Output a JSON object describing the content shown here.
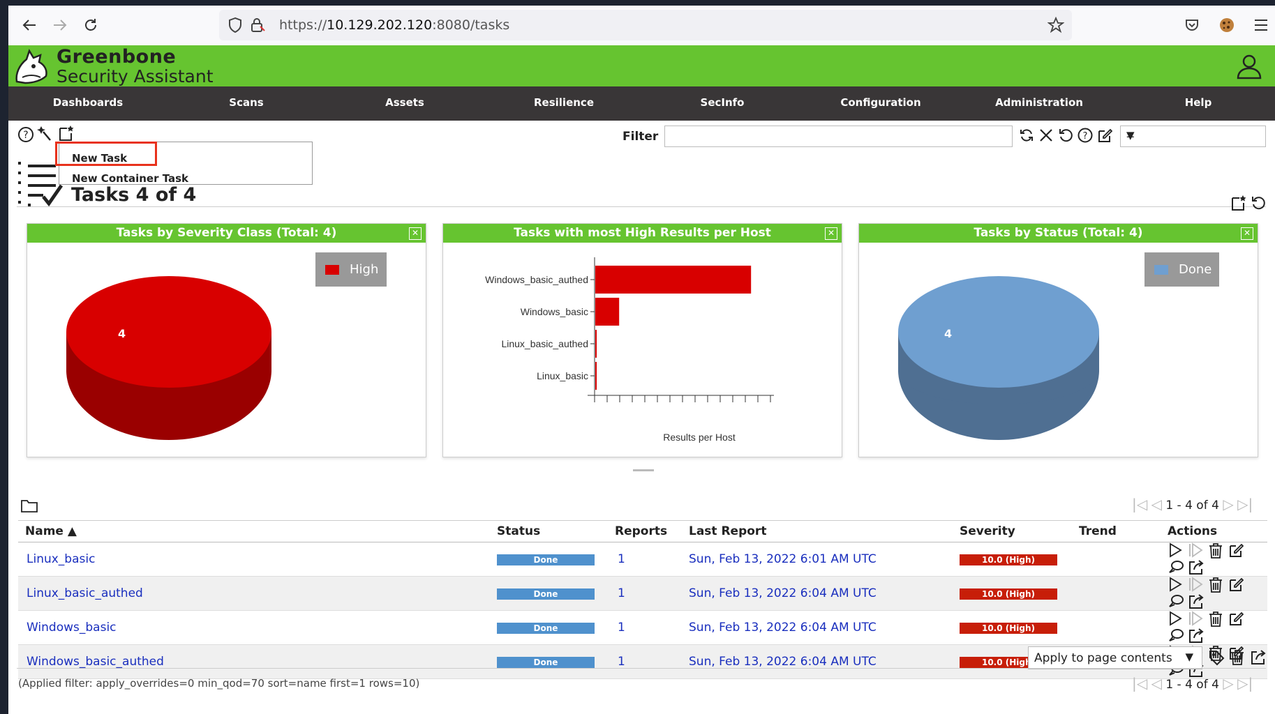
{
  "browser": {
    "url_prefix": "https://",
    "url_host": "10.129.202.120",
    "url_path": ":8080/tasks"
  },
  "app": {
    "brand_line1": "Greenbone",
    "brand_line2": "Security Assistant",
    "header_color": "#66c430"
  },
  "nav": [
    {
      "label": "Dashboards"
    },
    {
      "label": "Scans"
    },
    {
      "label": "Assets"
    },
    {
      "label": "Resilience"
    },
    {
      "label": "SecInfo"
    },
    {
      "label": "Configuration"
    },
    {
      "label": "Administration"
    },
    {
      "label": "Help"
    }
  ],
  "toolbar": {
    "filter_label": "Filter",
    "filter_value": "",
    "filter_select_value": "--"
  },
  "new_menu": {
    "items": [
      {
        "label": "New Task"
      },
      {
        "label": "New Container Task"
      }
    ]
  },
  "page": {
    "title": "Tasks 4 of 4"
  },
  "panels": {
    "severity": {
      "title": "Tasks by Severity Class (Total: 4)",
      "legend": "High",
      "slice_label": "4",
      "color": "#d80000"
    },
    "high_results": {
      "title": "Tasks with most High Results per Host",
      "xlabel": "Results per Host"
    },
    "status": {
      "title": "Tasks by Status (Total: 4)",
      "legend": "Done",
      "slice_label": "4",
      "color": "#6f9fd0"
    }
  },
  "chart_data": [
    {
      "type": "pie",
      "title": "Tasks by Severity Class (Total: 4)",
      "categories": [
        "High"
      ],
      "values": [
        4
      ]
    },
    {
      "type": "bar",
      "orientation": "horizontal",
      "title": "Tasks with most High Results per Host",
      "categories": [
        "Windows_basic_authed",
        "Windows_basic",
        "Linux_basic_authed",
        "Linux_basic"
      ],
      "values": [
        12.4,
        1.9,
        0.1,
        0.1
      ],
      "xlabel": "Results per Host",
      "xlim": [
        0,
        14
      ],
      "color": "#d80000"
    },
    {
      "type": "pie",
      "title": "Tasks by Status (Total: 4)",
      "categories": [
        "Done"
      ],
      "values": [
        4
      ]
    }
  ],
  "table": {
    "pager_text": "1 - 4 of 4",
    "headers": {
      "name": "Name ▲",
      "status": "Status",
      "reports": "Reports",
      "last_report": "Last Report",
      "severity": "Severity",
      "trend": "Trend",
      "actions": "Actions"
    },
    "rows": [
      {
        "name": "Linux_basic",
        "status": "Done",
        "reports": "1",
        "last_report": "Sun, Feb 13, 2022 6:01 AM UTC",
        "severity": "10.0 (High)"
      },
      {
        "name": "Linux_basic_authed",
        "status": "Done",
        "reports": "1",
        "last_report": "Sun, Feb 13, 2022 6:04 AM UTC",
        "severity": "10.0 (High)"
      },
      {
        "name": "Windows_basic",
        "status": "Done",
        "reports": "1",
        "last_report": "Sun, Feb 13, 2022 6:04 AM UTC",
        "severity": "10.0 (High)"
      },
      {
        "name": "Windows_basic_authed",
        "status": "Done",
        "reports": "1",
        "last_report": "Sun, Feb 13, 2022 6:04 AM UTC",
        "severity": "10.0 (High)"
      }
    ],
    "bulk_action": "Apply to page contents",
    "applied_filter": "(Applied filter: apply_overrides=0 min_qod=70 sort=name first=1 rows=10)"
  },
  "icons": {
    "back": "back-arrow-icon",
    "forward": "forward-arrow-icon",
    "reload": "reload-icon",
    "shield": "shield-icon",
    "lock": "lock-icon",
    "star": "bookmark-star-icon",
    "pocket": "pocket-icon",
    "cookie": "cookie-icon",
    "menu": "hamburger-menu-icon",
    "user": "user-icon"
  }
}
